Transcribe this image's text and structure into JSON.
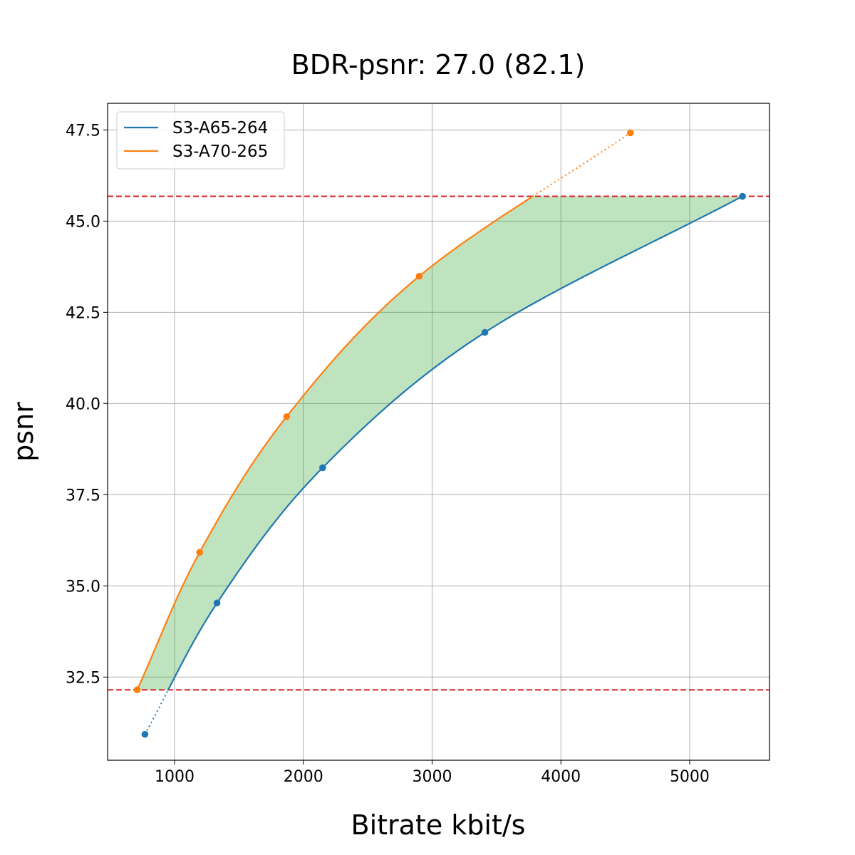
{
  "chart_data": {
    "type": "line",
    "title": "BDR-psnr: 27.0 (82.1)",
    "xlabel": "Bitrate kbit/s",
    "ylabel": "psnr",
    "xlim": [
      480,
      5620
    ],
    "ylim": [
      30.22,
      48.23
    ],
    "xticks": [
      1000,
      2000,
      3000,
      4000,
      5000
    ],
    "xtick_labels": [
      "1000",
      "2000",
      "3000",
      "4000",
      "5000"
    ],
    "yticks": [
      32.5,
      35.0,
      37.5,
      40.0,
      42.5,
      45.0,
      47.5
    ],
    "ytick_labels": [
      "32.5",
      "35.0",
      "37.5",
      "40.0",
      "42.5",
      "45.0",
      "47.5"
    ],
    "grid": true,
    "legend_position": "top-left",
    "reference_lines": [
      32.15,
      45.68
    ],
    "reference_line_color": "#d62728",
    "fill_color": "#2ca02c",
    "series": [
      {
        "name": "S3-A65-264",
        "color": "#1f77b4",
        "x": [
          770,
          1330,
          2150,
          3410,
          5410
        ],
        "y": [
          30.93,
          34.53,
          38.24,
          41.95,
          45.68
        ]
      },
      {
        "name": "S3-A70-265",
        "color": "#ff7f0e",
        "x": [
          710,
          1195,
          1870,
          2900,
          4540
        ],
        "y": [
          32.15,
          35.92,
          39.64,
          43.49,
          47.42
        ]
      }
    ]
  }
}
